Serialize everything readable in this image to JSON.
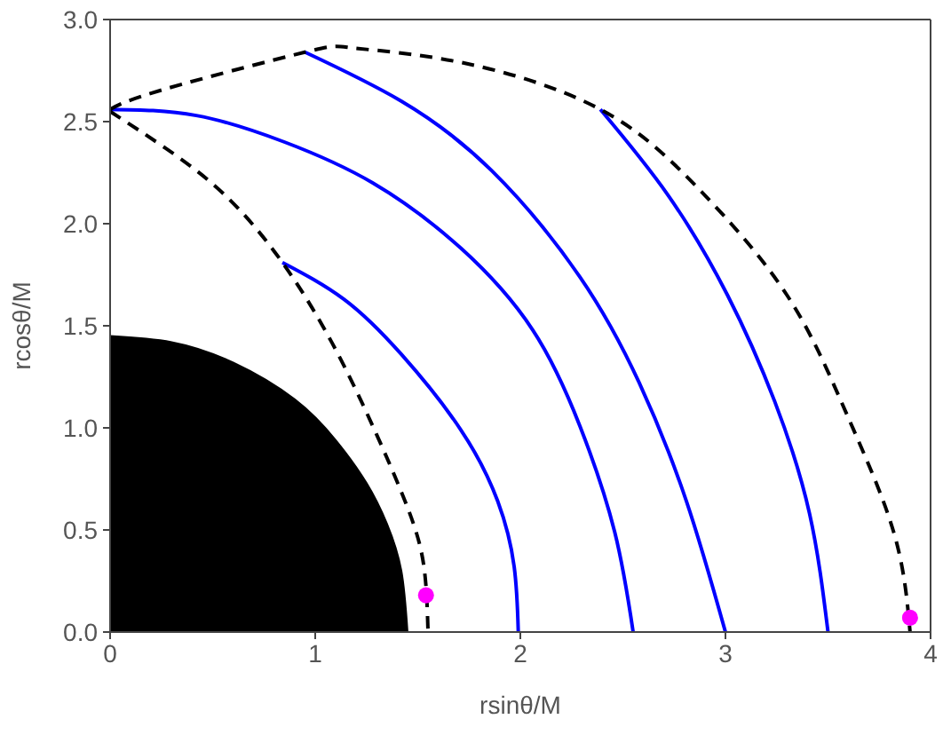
{
  "chart_data": {
    "type": "line",
    "xlabel": "rsinθ/M",
    "ylabel": "rcosθ/M",
    "xlim": [
      0,
      4
    ],
    "ylim": [
      0,
      3
    ],
    "xticks": [
      0,
      1,
      2,
      3,
      4
    ],
    "yticks": [
      {
        "value": 0,
        "label": "0.0"
      },
      0.5,
      {
        "value": 1,
        "label": "1.0"
      },
      1.5,
      {
        "value": 2,
        "label": "2.0"
      },
      2.5,
      {
        "value": 3,
        "label": "3.0"
      }
    ],
    "grid": false,
    "legend": false,
    "marker": "none",
    "series": [
      {
        "type": "area",
        "color": "#000000",
        "x": [
          0,
          0.3,
          0.6,
          0.9,
          1.1,
          1.25,
          1.35,
          1.42,
          1.45
        ],
        "values": [
          1.45,
          1.42,
          1.32,
          1.14,
          0.94,
          0.73,
          0.53,
          0.3,
          0
        ]
      },
      {
        "color": "#0000ff",
        "line_style": "solid",
        "x": [
          0.84,
          1.14,
          1.42,
          1.71,
          1.89,
          1.97,
          1.99
        ],
        "values": [
          1.81,
          1.63,
          1.36,
          0.99,
          0.64,
          0.32,
          0
        ]
      },
      {
        "color": "#0000ff",
        "line_style": "solid",
        "x": [
          0,
          0.42,
          0.85,
          1.28,
          1.71,
          2.06,
          2.29,
          2.46,
          2.55
        ],
        "values": [
          2.56,
          2.53,
          2.4,
          2.2,
          1.88,
          1.48,
          1.01,
          0.49,
          0
        ]
      },
      {
        "color": "#0000ff",
        "line_style": "solid",
        "x": [
          0.95,
          1.42,
          1.86,
          2.29,
          2.58,
          2.81,
          3.0
        ],
        "values": [
          2.84,
          2.6,
          2.26,
          1.74,
          1.22,
          0.64,
          0
        ]
      },
      {
        "color": "#0000ff",
        "line_style": "solid",
        "x": [
          2.39,
          2.72,
          3.01,
          3.24,
          3.41,
          3.5
        ],
        "values": [
          2.56,
          2.14,
          1.65,
          1.13,
          0.58,
          0
        ]
      },
      {
        "color": "#000000",
        "line_style": "dashed",
        "x": [
          0,
          0.27,
          0.95,
          1.19,
          1.71,
          2.39,
          2.87,
          3.3,
          3.59,
          3.82,
          3.9
        ],
        "values": [
          2.56,
          2.66,
          2.84,
          2.86,
          2.79,
          2.56,
          2.17,
          1.65,
          1.07,
          0.49,
          0
        ]
      },
      {
        "color": "#000000",
        "line_style": "dashed",
        "x": [
          0,
          0.27,
          0.56,
          0.84,
          1.08,
          1.28,
          1.45,
          1.53,
          1.55
        ],
        "values": [
          2.55,
          2.37,
          2.14,
          1.81,
          1.42,
          1.01,
          0.61,
          0.32,
          0
        ]
      },
      {
        "type": "scatter",
        "color": "#ff00ff",
        "marker": "circle",
        "x": [
          1.54,
          3.9
        ],
        "values": [
          0.18,
          0.07
        ]
      }
    ]
  }
}
